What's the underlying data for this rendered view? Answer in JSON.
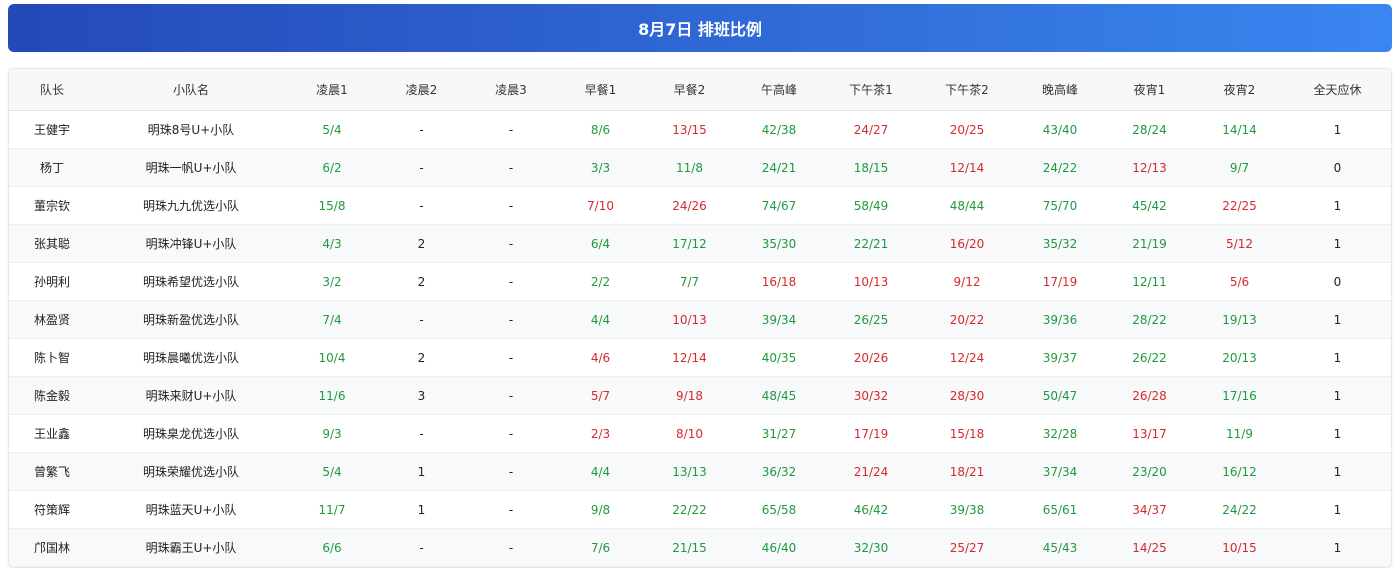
{
  "title": "8月7日 排班比例",
  "table": {
    "headers": [
      "队长",
      "小队名",
      "凌晨1",
      "凌晨2",
      "凌晨3",
      "早餐1",
      "早餐2",
      "午高峰",
      "下午茶1",
      "下午茶2",
      "晚高峰",
      "夜宵1",
      "夜宵2",
      "全天应休"
    ],
    "rows": [
      [
        "王健宇",
        "明珠8号U+小队",
        "5/4",
        "-",
        "-",
        "8/6",
        "13/15",
        "42/38",
        "24/27",
        "20/25",
        "43/40",
        "28/24",
        "14/14",
        "1"
      ],
      [
        "杨丁",
        "明珠一帆U+小队",
        "6/2",
        "-",
        "-",
        "3/3",
        "11/8",
        "24/21",
        "18/15",
        "12/14",
        "24/22",
        "12/13",
        "9/7",
        "0"
      ],
      [
        "董宗钦",
        "明珠九九优选小队",
        "15/8",
        "-",
        "-",
        "7/10",
        "24/26",
        "74/67",
        "58/49",
        "48/44",
        "75/70",
        "45/42",
        "22/25",
        "1"
      ],
      [
        "张其聪",
        "明珠冲锋U+小队",
        "4/3",
        "2",
        "-",
        "6/4",
        "17/12",
        "35/30",
        "22/21",
        "16/20",
        "35/32",
        "21/19",
        "5/12",
        "1"
      ],
      [
        "孙明利",
        "明珠希望优选小队",
        "3/2",
        "2",
        "-",
        "2/2",
        "7/7",
        "16/18",
        "10/13",
        "9/12",
        "17/19",
        "12/11",
        "5/6",
        "0"
      ],
      [
        "林盈贤",
        "明珠新盈优选小队",
        "7/4",
        "-",
        "-",
        "4/4",
        "10/13",
        "39/34",
        "26/25",
        "20/22",
        "39/36",
        "28/22",
        "19/13",
        "1"
      ],
      [
        "陈卜智",
        "明珠晨曦优选小队",
        "10/4",
        "2",
        "-",
        "4/6",
        "12/14",
        "40/35",
        "20/26",
        "12/24",
        "39/37",
        "26/22",
        "20/13",
        "1"
      ],
      [
        "陈金毅",
        "明珠来财U+小队",
        "11/6",
        "3",
        "-",
        "5/7",
        "9/18",
        "48/45",
        "30/32",
        "28/30",
        "50/47",
        "26/28",
        "17/16",
        "1"
      ],
      [
        "王业鑫",
        "明珠臬龙优选小队",
        "9/3",
        "-",
        "-",
        "2/3",
        "8/10",
        "31/27",
        "17/19",
        "15/18",
        "32/28",
        "13/17",
        "11/9",
        "1"
      ],
      [
        "曾繁飞",
        "明珠荣耀优选小队",
        "5/4",
        "1",
        "-",
        "4/4",
        "13/13",
        "36/32",
        "21/24",
        "18/21",
        "37/34",
        "23/20",
        "16/12",
        "1"
      ],
      [
        "符策辉",
        "明珠蓝天U+小队",
        "11/7",
        "1",
        "-",
        "9/8",
        "22/22",
        "65/58",
        "46/42",
        "39/38",
        "65/61",
        "34/37",
        "24/22",
        "1"
      ],
      [
        "邝国林",
        "明珠霸王U+小队",
        "6/6",
        "-",
        "-",
        "7/6",
        "21/15",
        "46/40",
        "32/30",
        "25/27",
        "45/43",
        "14/25",
        "10/15",
        "1"
      ]
    ]
  },
  "colors": {
    "met": "#1f9a3e",
    "short": "#d42a2f",
    "plain": "#222222"
  }
}
